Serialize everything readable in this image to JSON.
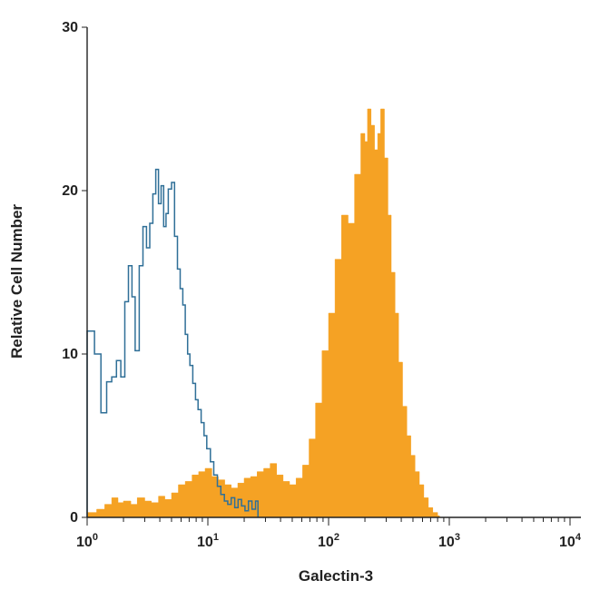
{
  "chart_data": {
    "type": "area",
    "xlabel": "Galectin-3",
    "ylabel": "Relative Cell Number",
    "xscale": "log",
    "xlim": [
      1,
      10000
    ],
    "ylim": [
      0,
      30
    ],
    "x_ticks": [
      {
        "base": "10",
        "exp": "0",
        "value": 1
      },
      {
        "base": "10",
        "exp": "1",
        "value": 10
      },
      {
        "base": "10",
        "exp": "2",
        "value": 100
      },
      {
        "base": "10",
        "exp": "3",
        "value": 1000
      },
      {
        "base": "10",
        "exp": "4",
        "value": 10000
      }
    ],
    "y_ticks": [
      {
        "label": "0",
        "value": 0
      },
      {
        "label": "10",
        "value": 10
      },
      {
        "label": "20",
        "value": 20
      },
      {
        "label": "30",
        "value": 30
      }
    ],
    "grid": false,
    "legend": "none",
    "series": [
      {
        "style": "outline",
        "color": "#2f6f97",
        "x": [
          1.0,
          1.15,
          1.3,
          1.45,
          1.6,
          1.75,
          1.9,
          2.05,
          2.2,
          2.35,
          2.5,
          2.7,
          2.9,
          3.1,
          3.3,
          3.5,
          3.7,
          3.9,
          4.1,
          4.3,
          4.5,
          4.7,
          5.0,
          5.3,
          5.6,
          5.9,
          6.2,
          6.5,
          6.8,
          7.1,
          7.5,
          7.9,
          8.3,
          8.8,
          9.3,
          9.8,
          10.5,
          11.2,
          12.0,
          12.8,
          13.7,
          14.6,
          15.6,
          16.7,
          17.8,
          19.0,
          20.3,
          21.7,
          23.2,
          24.8,
          26.0
        ],
        "values": [
          11.4,
          10.0,
          6.4,
          8.3,
          8.6,
          9.6,
          8.6,
          13.2,
          15.4,
          13.5,
          10.2,
          15.4,
          17.8,
          16.5,
          18.0,
          19.8,
          21.3,
          19.2,
          20.3,
          17.8,
          18.6,
          20.1,
          20.5,
          17.2,
          15.2,
          14.0,
          13.0,
          11.2,
          10.0,
          9.3,
          8.2,
          7.2,
          6.6,
          5.8,
          5.0,
          4.2,
          3.4,
          2.6,
          1.9,
          1.4,
          1.0,
          0.8,
          1.2,
          0.6,
          1.1,
          0.7,
          0.4,
          1.0,
          0.5,
          1.0,
          0.0
        ]
      },
      {
        "style": "filled",
        "color": "#f5a224",
        "x": [
          1.0,
          1.2,
          1.4,
          1.6,
          1.8,
          2.0,
          2.3,
          2.6,
          3.0,
          3.4,
          3.9,
          4.4,
          5.0,
          5.7,
          6.5,
          7.4,
          8.4,
          9.5,
          10.8,
          12.2,
          13.8,
          15.6,
          17.7,
          20.0,
          22.6,
          25.6,
          29.0,
          32.8,
          37.1,
          42.0,
          47.5,
          53.8,
          60.9,
          68.9,
          78.0,
          88.3,
          100.0,
          113.0,
          128.0,
          145.0,
          164.0,
          185.0,
          200.0,
          210.0,
          225.0,
          240.0,
          255.0,
          270.0,
          290.0,
          310.0,
          330.0,
          355.0,
          380.0,
          410.0,
          445.0,
          480.0,
          520.0,
          565.0,
          615.0,
          670.0,
          730.0,
          800.0,
          830.0
        ],
        "values": [
          0.3,
          0.5,
          0.8,
          1.2,
          0.9,
          1.0,
          0.8,
          1.2,
          1.0,
          0.9,
          1.3,
          1.1,
          1.5,
          2.0,
          2.2,
          2.6,
          2.8,
          3.0,
          2.5,
          2.3,
          2.0,
          1.8,
          2.1,
          2.4,
          2.5,
          2.8,
          3.0,
          3.3,
          2.6,
          2.2,
          2.0,
          2.4,
          3.2,
          4.8,
          7.0,
          10.2,
          12.5,
          15.8,
          18.5,
          18.0,
          21.0,
          23.5,
          23.0,
          25.0,
          24.0,
          22.5,
          23.5,
          25.0,
          22.0,
          18.5,
          15.0,
          12.5,
          9.5,
          6.8,
          5.0,
          3.8,
          2.8,
          2.0,
          1.2,
          0.6,
          0.3,
          0.1,
          0.0
        ]
      }
    ]
  }
}
